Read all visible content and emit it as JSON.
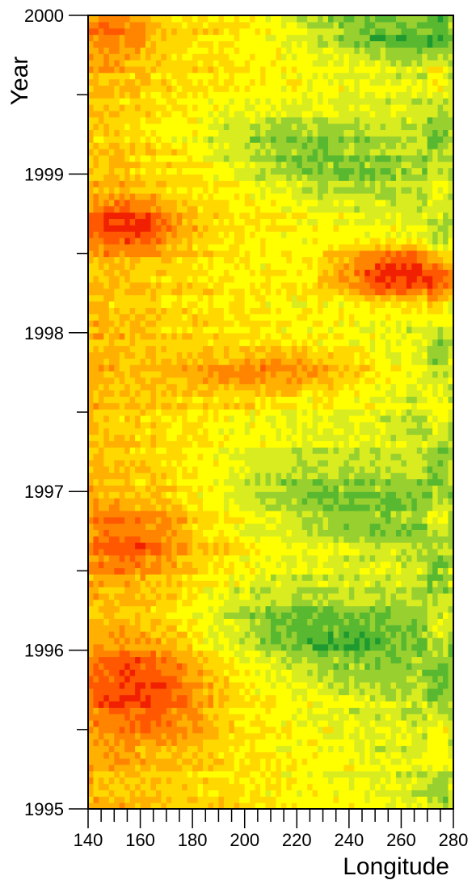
{
  "chart_data": {
    "type": "heatmap",
    "title": "",
    "xlabel": "Longitude",
    "ylabel": "Year",
    "xlim": [
      140,
      280
    ],
    "ylim": [
      1995,
      2000
    ],
    "x_ticks": [
      "140",
      "160",
      "180",
      "200",
      "220",
      "240",
      "260",
      "280"
    ],
    "x_minor_step": 5,
    "y_ticks": [
      "1995",
      "1996",
      "1997",
      "1998",
      "1999",
      "2000"
    ],
    "y_minor_step": 0.5,
    "grid": false,
    "colorbar": false,
    "colormap": [
      "#1e9a30",
      "#58b830",
      "#98d030",
      "#d8ec20",
      "#ffff00",
      "#ffd800",
      "#ffb000",
      "#ff8400",
      "#ff5800",
      "#f02000"
    ],
    "x_resolution_deg": 2,
    "y_resolution_years": 0.04,
    "dominant_features": [
      {
        "kind": "warm",
        "lon": [
          140,
          180
        ],
        "years": [
          1995.5,
          1996.0
        ],
        "level": 0.9
      },
      {
        "kind": "warm",
        "lon": [
          140,
          175
        ],
        "years": [
          1996.5,
          1996.85
        ],
        "level": 0.85
      },
      {
        "kind": "warm",
        "lon": [
          140,
          170
        ],
        "years": [
          1998.55,
          1998.8
        ],
        "level": 0.95
      },
      {
        "kind": "warm",
        "lon": [
          140,
          160
        ],
        "years": [
          1999.75,
          2000.0
        ],
        "level": 0.8
      },
      {
        "kind": "warm",
        "lon": [
          175,
          240
        ],
        "years": [
          1997.65,
          1997.85
        ],
        "level": 0.75
      },
      {
        "kind": "warm",
        "lon": [
          240,
          280
        ],
        "years": [
          1998.25,
          1998.5
        ],
        "level": 1.0
      },
      {
        "kind": "cool",
        "lon": [
          200,
          275
        ],
        "years": [
          1995.85,
          1996.3
        ],
        "level": 0.15
      },
      {
        "kind": "cool",
        "lon": [
          205,
          280
        ],
        "years": [
          1996.75,
          1997.15
        ],
        "level": 0.2
      },
      {
        "kind": "cool",
        "lon": [
          195,
          265
        ],
        "years": [
          1998.95,
          1999.3
        ],
        "level": 0.2
      },
      {
        "kind": "cool",
        "lon": [
          230,
          280
        ],
        "years": [
          1999.8,
          2000.0
        ],
        "level": 0.15
      }
    ]
  }
}
